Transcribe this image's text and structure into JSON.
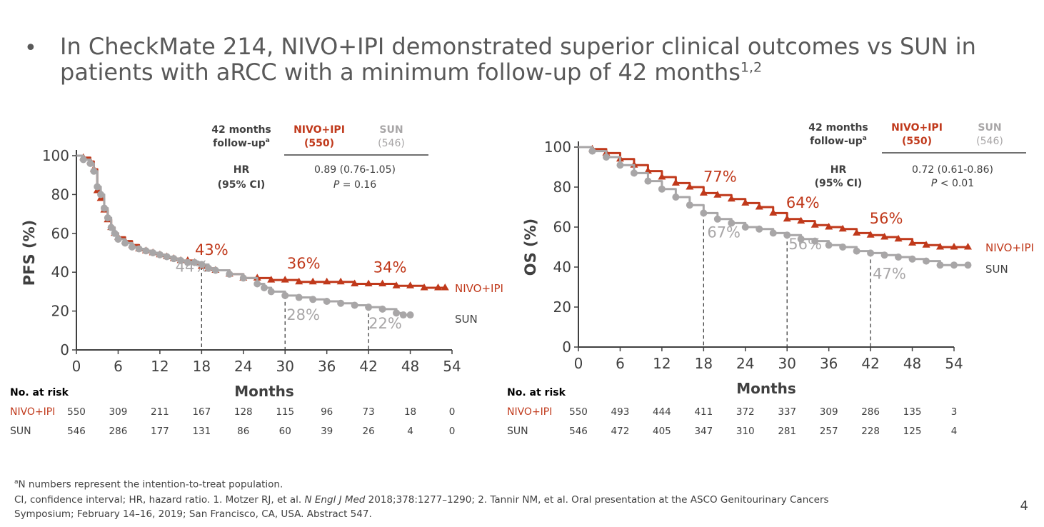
{
  "slide": {
    "bullet": "•",
    "title_text": "In CheckMate 214, NIVO+IPI demonstrated superior clinical outcomes vs SUN in patients with aRCC with a minimum follow-up of 42 months",
    "title_refs": "1,2",
    "page_number": "4"
  },
  "footnotes": {
    "line1_sup": "a",
    "line1": "N numbers represent the intention-to-treat population.",
    "line2_pre": "CI, confidence interval; HR, hazard ratio. 1. Motzer RJ, et al. ",
    "line2_journal": "N Engl J Med",
    "line2_post": " 2018;378:1277–1290; 2. Tannir NM, et al. Oral presentation at the ASCO Genitourinary Cancers",
    "line3": "Symposium; February 14–16, 2019; San Francisco, CA, USA. Abstract 547."
  },
  "colors": {
    "nivo": "#C0391B",
    "sun": "#A8A6A7",
    "axis": "#404040",
    "text": "#404040"
  },
  "chart_data": [
    {
      "type": "line",
      "ylabel": "PFS (%)",
      "xlabel": "Months",
      "xlim": [
        0,
        54
      ],
      "ylim": [
        0,
        100
      ],
      "x_ticks": [
        0,
        6,
        12,
        18,
        24,
        30,
        36,
        42,
        48,
        54
      ],
      "y_ticks": [
        0,
        20,
        40,
        60,
        80,
        100
      ],
      "summary": {
        "followup_line1": "42 months",
        "followup_line2": "follow-up",
        "followup_sup": "a",
        "nivo_header": "NIVO+IPI",
        "nivo_n": "(550)",
        "sun_header": "SUN",
        "sun_n": "(546)",
        "hr_label": "HR",
        "ci_label": "(95% CI)",
        "hr_value": "0.89 (0.76-1.05)",
        "p_letter": "P",
        "p_rest": " = 0.16"
      },
      "series": [
        {
          "name": "NIVO+IPI",
          "marker": "triangle",
          "x": [
            0,
            1,
            2,
            2.5,
            3,
            3.5,
            4,
            4.5,
            5,
            5.5,
            6,
            7,
            8,
            9,
            10,
            11,
            12,
            13,
            14,
            15,
            16,
            17,
            18,
            19,
            20,
            22,
            24,
            26,
            28,
            30,
            32,
            34,
            36,
            38,
            40,
            42,
            44,
            46,
            48,
            50,
            52,
            53
          ],
          "y": [
            100,
            99,
            97,
            93,
            82,
            78,
            72,
            67,
            63,
            60,
            58,
            56,
            54,
            52,
            51,
            50,
            49,
            48,
            47,
            46,
            46,
            45,
            43,
            42,
            41,
            39,
            37,
            37,
            36,
            36,
            35,
            35,
            35,
            35,
            34,
            34,
            34,
            33,
            33,
            32,
            32,
            32
          ]
        },
        {
          "name": "SUN",
          "marker": "circle",
          "x": [
            0,
            1,
            2,
            2.5,
            3,
            3.5,
            4,
            4.5,
            5,
            5.5,
            6,
            7,
            8,
            9,
            10,
            11,
            12,
            13,
            14,
            15,
            16,
            17,
            18,
            19,
            20,
            22,
            24,
            26,
            27,
            28,
            30,
            32,
            34,
            36,
            38,
            40,
            42,
            44,
            46,
            47,
            48
          ],
          "y": [
            100,
            98,
            96,
            92,
            84,
            80,
            73,
            68,
            63,
            60,
            57,
            55,
            53,
            52,
            51,
            50,
            49,
            48,
            47,
            46,
            45,
            45,
            44,
            42,
            41,
            39,
            37,
            34,
            32,
            30,
            28,
            27,
            26,
            25,
            24,
            23,
            22,
            21,
            19,
            18,
            18
          ]
        }
      ],
      "landmarks": [
        18,
        30,
        42
      ],
      "nivo_labels": [
        "43%",
        "36%",
        "34%"
      ],
      "sun_labels": [
        "44%",
        "28%",
        "22%"
      ],
      "end_labels": {
        "nivo": "NIVO+IPI",
        "sun": "SUN"
      },
      "risk": {
        "header": "No. at risk",
        "rows": [
          {
            "label": "NIVO+IPI",
            "values": [
              "550",
              "309",
              "211",
              "167",
              "128",
              "115",
              "96",
              "73",
              "18",
              "0"
            ]
          },
          {
            "label": "SUN",
            "values": [
              "546",
              "286",
              "177",
              "131",
              "86",
              "60",
              "39",
              "26",
              "4",
              "0"
            ]
          }
        ]
      }
    },
    {
      "type": "line",
      "ylabel": "OS (%)",
      "xlabel": "Months",
      "xlim": [
        0,
        54
      ],
      "ylim": [
        0,
        100
      ],
      "x_ticks": [
        0,
        6,
        12,
        18,
        24,
        30,
        36,
        42,
        48,
        54
      ],
      "y_ticks": [
        0,
        20,
        40,
        60,
        80,
        100
      ],
      "summary": {
        "followup_line1": "42 months",
        "followup_line2": "follow-up",
        "followup_sup": "a",
        "nivo_header": "NIVO+IPI",
        "nivo_n": "(550)",
        "sun_header": "SUN",
        "sun_n": "(546)",
        "hr_label": "HR",
        "ci_label": "(95% CI)",
        "hr_value": "0.72 (0.61-0.86)",
        "p_letter": "P",
        "p_rest": " < 0.01"
      },
      "series": [
        {
          "name": "NIVO+IPI",
          "marker": "triangle",
          "x": [
            0,
            2,
            4,
            6,
            8,
            10,
            12,
            14,
            16,
            18,
            20,
            22,
            24,
            26,
            28,
            30,
            32,
            34,
            36,
            38,
            40,
            42,
            44,
            46,
            48,
            50,
            52,
            54,
            56
          ],
          "y": [
            100,
            99,
            97,
            94,
            91,
            88,
            85,
            82,
            80,
            77,
            76,
            74,
            72,
            70,
            67,
            64,
            63,
            61,
            60,
            59,
            57,
            56,
            55,
            54,
            52,
            51,
            50,
            50,
            50
          ]
        },
        {
          "name": "SUN",
          "marker": "circle",
          "x": [
            0,
            2,
            4,
            6,
            8,
            10,
            12,
            14,
            16,
            18,
            20,
            22,
            24,
            26,
            28,
            30,
            32,
            34,
            36,
            38,
            40,
            42,
            44,
            46,
            48,
            50,
            52,
            54,
            56
          ],
          "y": [
            100,
            98,
            95,
            91,
            87,
            83,
            79,
            75,
            71,
            67,
            64,
            62,
            60,
            59,
            57,
            56,
            54,
            53,
            51,
            50,
            48,
            47,
            46,
            45,
            44,
            43,
            41,
            41,
            41
          ]
        }
      ],
      "landmarks": [
        18,
        30,
        42
      ],
      "nivo_labels": [
        "77%",
        "64%",
        "56%"
      ],
      "sun_labels": [
        "67%",
        "56%",
        "47%"
      ],
      "end_labels": {
        "nivo": "NIVO+IPI",
        "sun": "SUN"
      },
      "risk": {
        "header": "No. at risk",
        "rows": [
          {
            "label": "NIVO+IPI",
            "values": [
              "550",
              "493",
              "444",
              "411",
              "372",
              "337",
              "309",
              "286",
              "135",
              "3"
            ]
          },
          {
            "label": "SUN",
            "values": [
              "546",
              "472",
              "405",
              "347",
              "310",
              "281",
              "257",
              "228",
              "125",
              "4"
            ]
          }
        ]
      }
    }
  ]
}
